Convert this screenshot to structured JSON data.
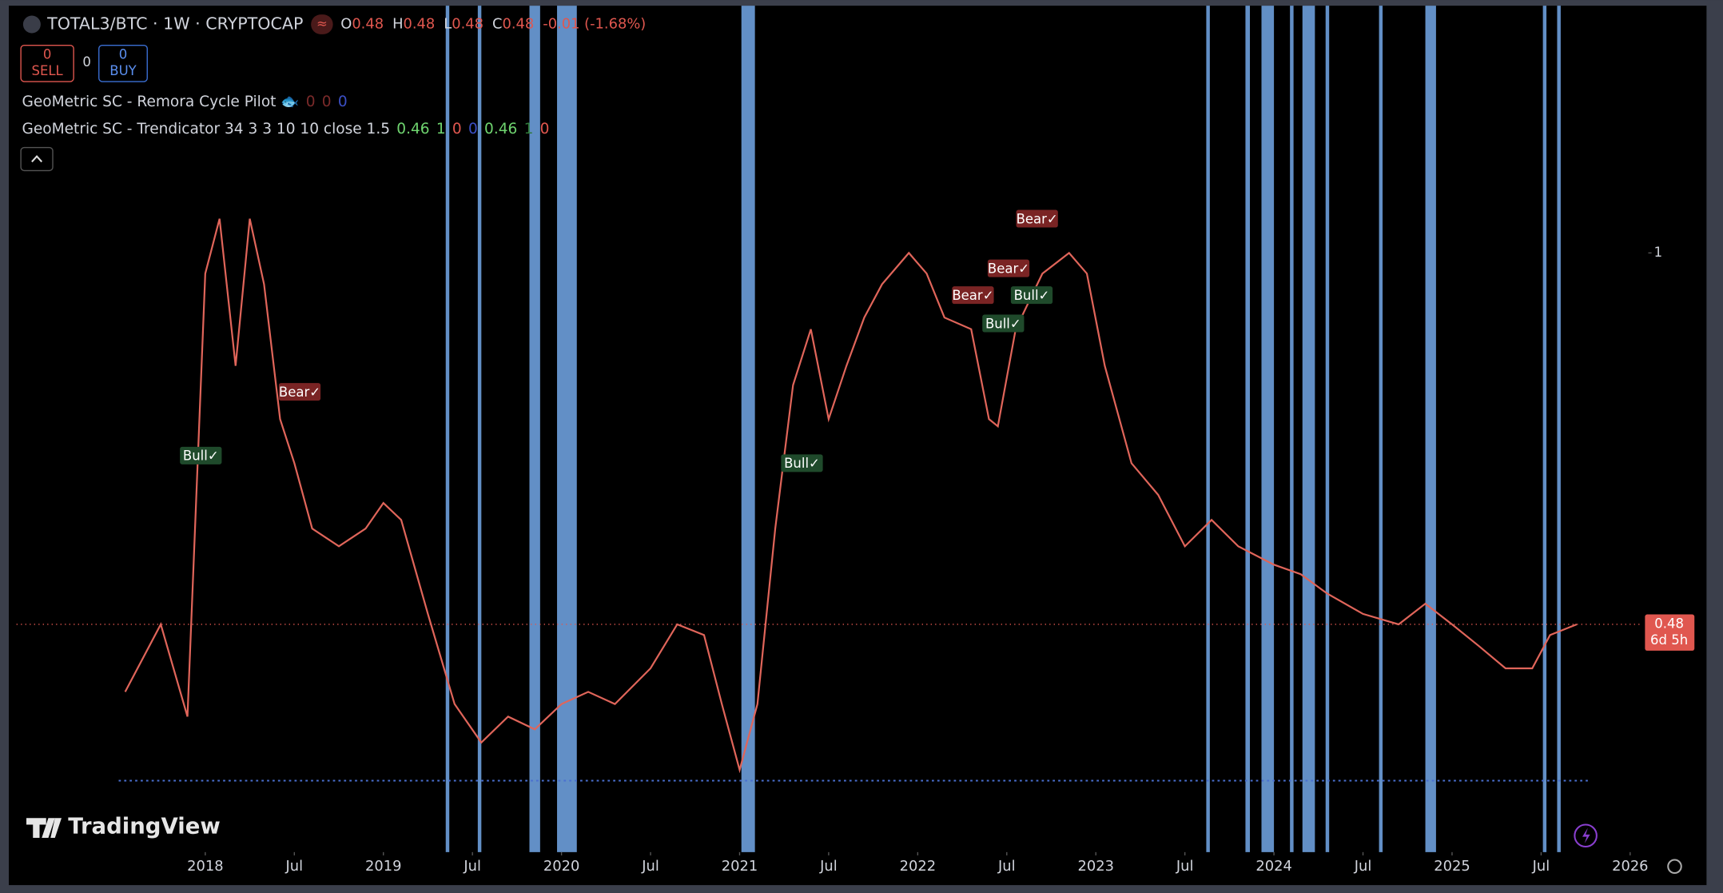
{
  "header": {
    "symbol": "TOTAL3/BTC · 1W · CRYPTOCAP",
    "badge": "≈",
    "ohlc": [
      {
        "k": "O",
        "v": "0.48"
      },
      {
        "k": "H",
        "v": "0.48"
      },
      {
        "k": "L",
        "v": "0.48"
      },
      {
        "k": "C",
        "v": "0.48"
      }
    ],
    "change": "-0.01 (-1.68%)"
  },
  "trade": {
    "sell_count": "0",
    "sell": "SELL",
    "spread": "0",
    "buy_count": "0",
    "buy": "BUY"
  },
  "indicators": [
    {
      "name": "GeoMetric SC - Remora Cycle Pilot 🐟",
      "values": [
        {
          "text": "0",
          "color": "#7a2a2a"
        },
        {
          "text": "0",
          "color": "#7a2a2a"
        },
        {
          "text": "0",
          "color": "#3b4fc4"
        }
      ]
    },
    {
      "name": "GeoMetric SC - Trendicator 34 3 3 10 10 close 1.5",
      "values": [
        {
          "text": "0.46",
          "color": "#6fd46f"
        },
        {
          "text": "1",
          "color": "#6fd46f"
        },
        {
          "text": "0",
          "color": "#e0574f"
        },
        {
          "text": "0",
          "color": "#3b4fc4"
        },
        {
          "text": "0.46",
          "color": "#6fd46f"
        },
        {
          "text": "1",
          "color": "#2f7a3a"
        },
        {
          "text": "0",
          "color": "#e0574f"
        }
      ]
    }
  ],
  "branding": "TradingView",
  "price_label": {
    "countdown": "6d 5h"
  },
  "chart_data": {
    "type": "line",
    "log_scale": true,
    "color": "#e0655a",
    "last": 0.48,
    "last_color": "#e0574f",
    "x": [
      2017.55,
      2017.75,
      2017.9,
      2018.0,
      2018.08,
      2018.17,
      2018.25,
      2018.33,
      2018.42,
      2018.5,
      2018.6,
      2018.75,
      2018.9,
      2019.0,
      2019.1,
      2019.25,
      2019.4,
      2019.55,
      2019.7,
      2019.85,
      2020.0,
      2020.15,
      2020.3,
      2020.5,
      2020.65,
      2020.8,
      2020.9,
      2021.0,
      2021.1,
      2021.2,
      2021.3,
      2021.4,
      2021.5,
      2021.6,
      2021.7,
      2021.8,
      2021.95,
      2022.05,
      2022.15,
      2022.3,
      2022.4,
      2022.45,
      2022.55,
      2022.7,
      2022.85,
      2022.95,
      2023.05,
      2023.2,
      2023.35,
      2023.5,
      2023.65,
      2023.8,
      2024.0,
      2024.15,
      2024.3,
      2024.5,
      2024.7,
      2024.85,
      2025.0,
      2025.15,
      2025.3,
      2025.45,
      2025.55,
      2025.7
    ],
    "values": [
      0.42,
      0.48,
      0.4,
      0.96,
      1.07,
      0.8,
      1.07,
      0.94,
      0.72,
      0.66,
      0.58,
      0.56,
      0.58,
      0.61,
      0.59,
      0.49,
      0.41,
      0.38,
      0.4,
      0.39,
      0.41,
      0.42,
      0.41,
      0.44,
      0.48,
      0.47,
      0.41,
      0.36,
      0.41,
      0.58,
      0.77,
      0.86,
      0.72,
      0.8,
      0.88,
      0.94,
      1.0,
      0.96,
      0.88,
      0.86,
      0.72,
      0.71,
      0.86,
      0.96,
      1.0,
      0.96,
      0.8,
      0.66,
      0.62,
      0.56,
      0.59,
      0.56,
      0.54,
      0.53,
      0.51,
      0.49,
      0.48,
      0.5,
      0.48,
      0.46,
      0.44,
      0.44,
      0.47,
      0.48
    ],
    "xlim": [
      2016.94,
      2026.04
    ],
    "ylim": [
      0.306,
      1.63
    ],
    "yticks": [
      1
    ],
    "xticks": [
      {
        "value": 2018,
        "label": "2018"
      },
      {
        "value": 2018.5,
        "label": "Jul"
      },
      {
        "value": 2019,
        "label": "2019"
      },
      {
        "value": 2019.5,
        "label": "Jul"
      },
      {
        "value": 2020,
        "label": "2020"
      },
      {
        "value": 2020.5,
        "label": "Jul"
      },
      {
        "value": 2021,
        "label": "2021"
      },
      {
        "value": 2021.5,
        "label": "Jul"
      },
      {
        "value": 2022,
        "label": "2022"
      },
      {
        "value": 2022.5,
        "label": "Jul"
      },
      {
        "value": 2023,
        "label": "2023"
      },
      {
        "value": 2023.5,
        "label": "Jul"
      },
      {
        "value": 2024,
        "label": "2024"
      },
      {
        "value": 2024.5,
        "label": "Jul"
      },
      {
        "value": 2025,
        "label": "2025"
      },
      {
        "value": 2025.5,
        "label": "Jul"
      },
      {
        "value": 2026,
        "label": "2026"
      }
    ],
    "band_color": "#6d9fdc",
    "bands": [
      [
        2019.35,
        2019.37
      ],
      [
        2019.53,
        2019.55
      ],
      [
        2019.82,
        2019.88
      ],
      [
        2019.975,
        2020.086
      ],
      [
        2021.01,
        2021.086
      ],
      [
        2023.62,
        2023.64
      ],
      [
        2023.84,
        2023.865
      ],
      [
        2023.93,
        2024.0
      ],
      [
        2024.09,
        2024.11
      ],
      [
        2024.16,
        2024.23
      ],
      [
        2024.29,
        2024.31
      ],
      [
        2024.59,
        2024.61
      ],
      [
        2024.85,
        2024.91
      ],
      [
        2025.51,
        2025.53
      ],
      [
        2025.59,
        2025.61
      ]
    ],
    "signals": [
      {
        "label": "Bull✓",
        "x": 2017.975,
        "price": 0.67,
        "color": "#1f4a2b"
      },
      {
        "label": "Bear✓",
        "x": 2018.53,
        "price": 0.76,
        "color": "#7a2424"
      },
      {
        "label": "Bull✓",
        "x": 2021.35,
        "price": 0.66,
        "color": "#1f4a2b"
      },
      {
        "label": "Bear✓",
        "x": 2022.31,
        "price": 0.92,
        "color": "#7a2424"
      },
      {
        "label": "Bull✓",
        "x": 2022.48,
        "price": 0.87,
        "color": "#1f4a2b"
      },
      {
        "label": "Bear✓",
        "x": 2022.51,
        "price": 0.97,
        "color": "#7a2424"
      },
      {
        "label": "Bull✓",
        "x": 2022.64,
        "price": 0.92,
        "color": "#1f4a2b"
      },
      {
        "label": "Bear✓",
        "x": 2022.67,
        "price": 1.07,
        "color": "#7a2424"
      }
    ]
  }
}
